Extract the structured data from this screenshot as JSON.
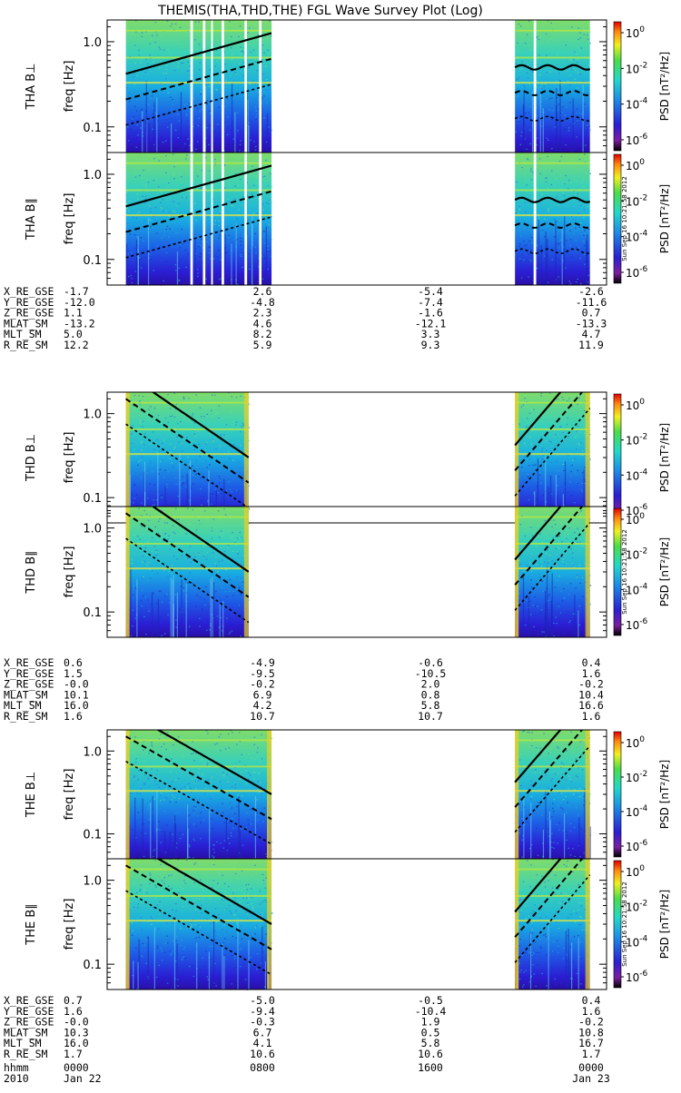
{
  "title": "THEMIS(THA,THD,THE) FGL Wave Survey Plot (Log)",
  "stamp": "Sun Sep 16 10:21:58 2012",
  "chart_data": {
    "type": "heatmap",
    "title": "THEMIS(THA,THD,THE) FGL Wave Survey Plot (Log)",
    "x_time_hours": [
      0,
      24
    ],
    "y_scale": "log",
    "ylabel": "freq [Hz]",
    "yticks": [
      "1.0",
      "0.1"
    ],
    "colorbar": {
      "label": "PSD [nT²/Hz]",
      "scale": "log",
      "ticks": [
        "10^0",
        "10^-2",
        "10^-4",
        "10^-6"
      ]
    },
    "probes": [
      {
        "name": "THA",
        "panels": [
          {
            "label": "THA B⊥",
            "component": "perp"
          },
          {
            "label": "THA B∥",
            "component": "par"
          }
        ],
        "data_hours": [
          [
            0.9,
            7.9
          ],
          [
            19.6,
            23.2
          ]
        ],
        "gaps_hours": [
          [
            4.0,
            4.12
          ],
          [
            4.6,
            4.72
          ],
          [
            5.0,
            5.08
          ],
          [
            5.5,
            5.62
          ],
          [
            6.6,
            6.72
          ],
          [
            7.3,
            7.42
          ],
          [
            20.5,
            20.62
          ]
        ]
      },
      {
        "name": "THD",
        "panels": [
          {
            "label": "THD B⊥",
            "component": "perp"
          },
          {
            "label": "THD B∥",
            "component": "par"
          }
        ],
        "data_hours": [
          [
            0.9,
            6.8
          ],
          [
            19.6,
            23.2
          ]
        ],
        "gaps_hours": []
      },
      {
        "name": "THE",
        "panels": [
          {
            "label": "THE B⊥",
            "component": "perp"
          },
          {
            "label": "THE B∥",
            "component": "par"
          }
        ],
        "data_hours": [
          [
            0.9,
            7.9
          ],
          [
            19.6,
            23.2
          ]
        ],
        "gaps_hours": []
      }
    ]
  },
  "ephemeris": [
    {
      "probe": "THA",
      "rows": [
        {
          "name": "X_RE_GSE",
          "values": [
            "-1.7",
            "2.6",
            "-5.4",
            "-2.6"
          ]
        },
        {
          "name": "Y_RE_GSE",
          "values": [
            "-12.0",
            "-4.8",
            "-7.4",
            "-11.6"
          ]
        },
        {
          "name": "Z_RE_GSE",
          "values": [
            "1.1",
            "2.3",
            "-1.6",
            "0.7"
          ]
        },
        {
          "name": "MLAT_SM",
          "values": [
            "-13.2",
            "4.6",
            "-12.1",
            "-13.3"
          ]
        },
        {
          "name": "MLT_SM",
          "values": [
            "5.0",
            "8.2",
            "3.3",
            "4.7"
          ]
        },
        {
          "name": "R_RE_SM",
          "values": [
            "12.2",
            "5.9",
            "9.3",
            "11.9"
          ]
        }
      ]
    },
    {
      "probe": "THD",
      "rows": [
        {
          "name": "X_RE_GSE",
          "values": [
            "0.6",
            "-4.9",
            "-0.6",
            "0.4"
          ]
        },
        {
          "name": "Y_RE_GSE",
          "values": [
            "1.5",
            "-9.5",
            "-10.5",
            "1.6"
          ]
        },
        {
          "name": "Z_RE_GSE",
          "values": [
            "-0.0",
            "-0.2",
            "2.0",
            "-0.2"
          ]
        },
        {
          "name": "MLAT_SM",
          "values": [
            "10.1",
            "6.9",
            "0.8",
            "10.4"
          ]
        },
        {
          "name": "MLT_SM",
          "values": [
            "16.0",
            "4.2",
            "5.8",
            "16.6"
          ]
        },
        {
          "name": "R_RE_SM",
          "values": [
            "1.6",
            "10.7",
            "10.7",
            "1.6"
          ]
        }
      ]
    },
    {
      "probe": "THE",
      "rows": [
        {
          "name": "X_RE_GSE",
          "values": [
            "0.7",
            "-5.0",
            "-0.5",
            "0.4"
          ]
        },
        {
          "name": "Y_RE_GSE",
          "values": [
            "1.6",
            "-9.4",
            "-10.4",
            "1.6"
          ]
        },
        {
          "name": "Z_RE_GSE",
          "values": [
            "-0.0",
            "-0.3",
            "1.9",
            "-0.2"
          ]
        },
        {
          "name": "MLAT_SM",
          "values": [
            "10.3",
            "6.7",
            "0.5",
            "10.8"
          ]
        },
        {
          "name": "MLT_SM",
          "values": [
            "16.0",
            "4.1",
            "5.8",
            "16.7"
          ]
        },
        {
          "name": "R_RE_SM",
          "values": [
            "1.7",
            "10.6",
            "10.6",
            "1.7"
          ]
        }
      ]
    }
  ],
  "time_axis": {
    "hhmm_label": "hhmm",
    "year_label": "2010",
    "hhmm": [
      "0000",
      "0800",
      "1600",
      "0000"
    ],
    "dates": [
      "Jan 22",
      "",
      "",
      "Jan 23"
    ]
  }
}
